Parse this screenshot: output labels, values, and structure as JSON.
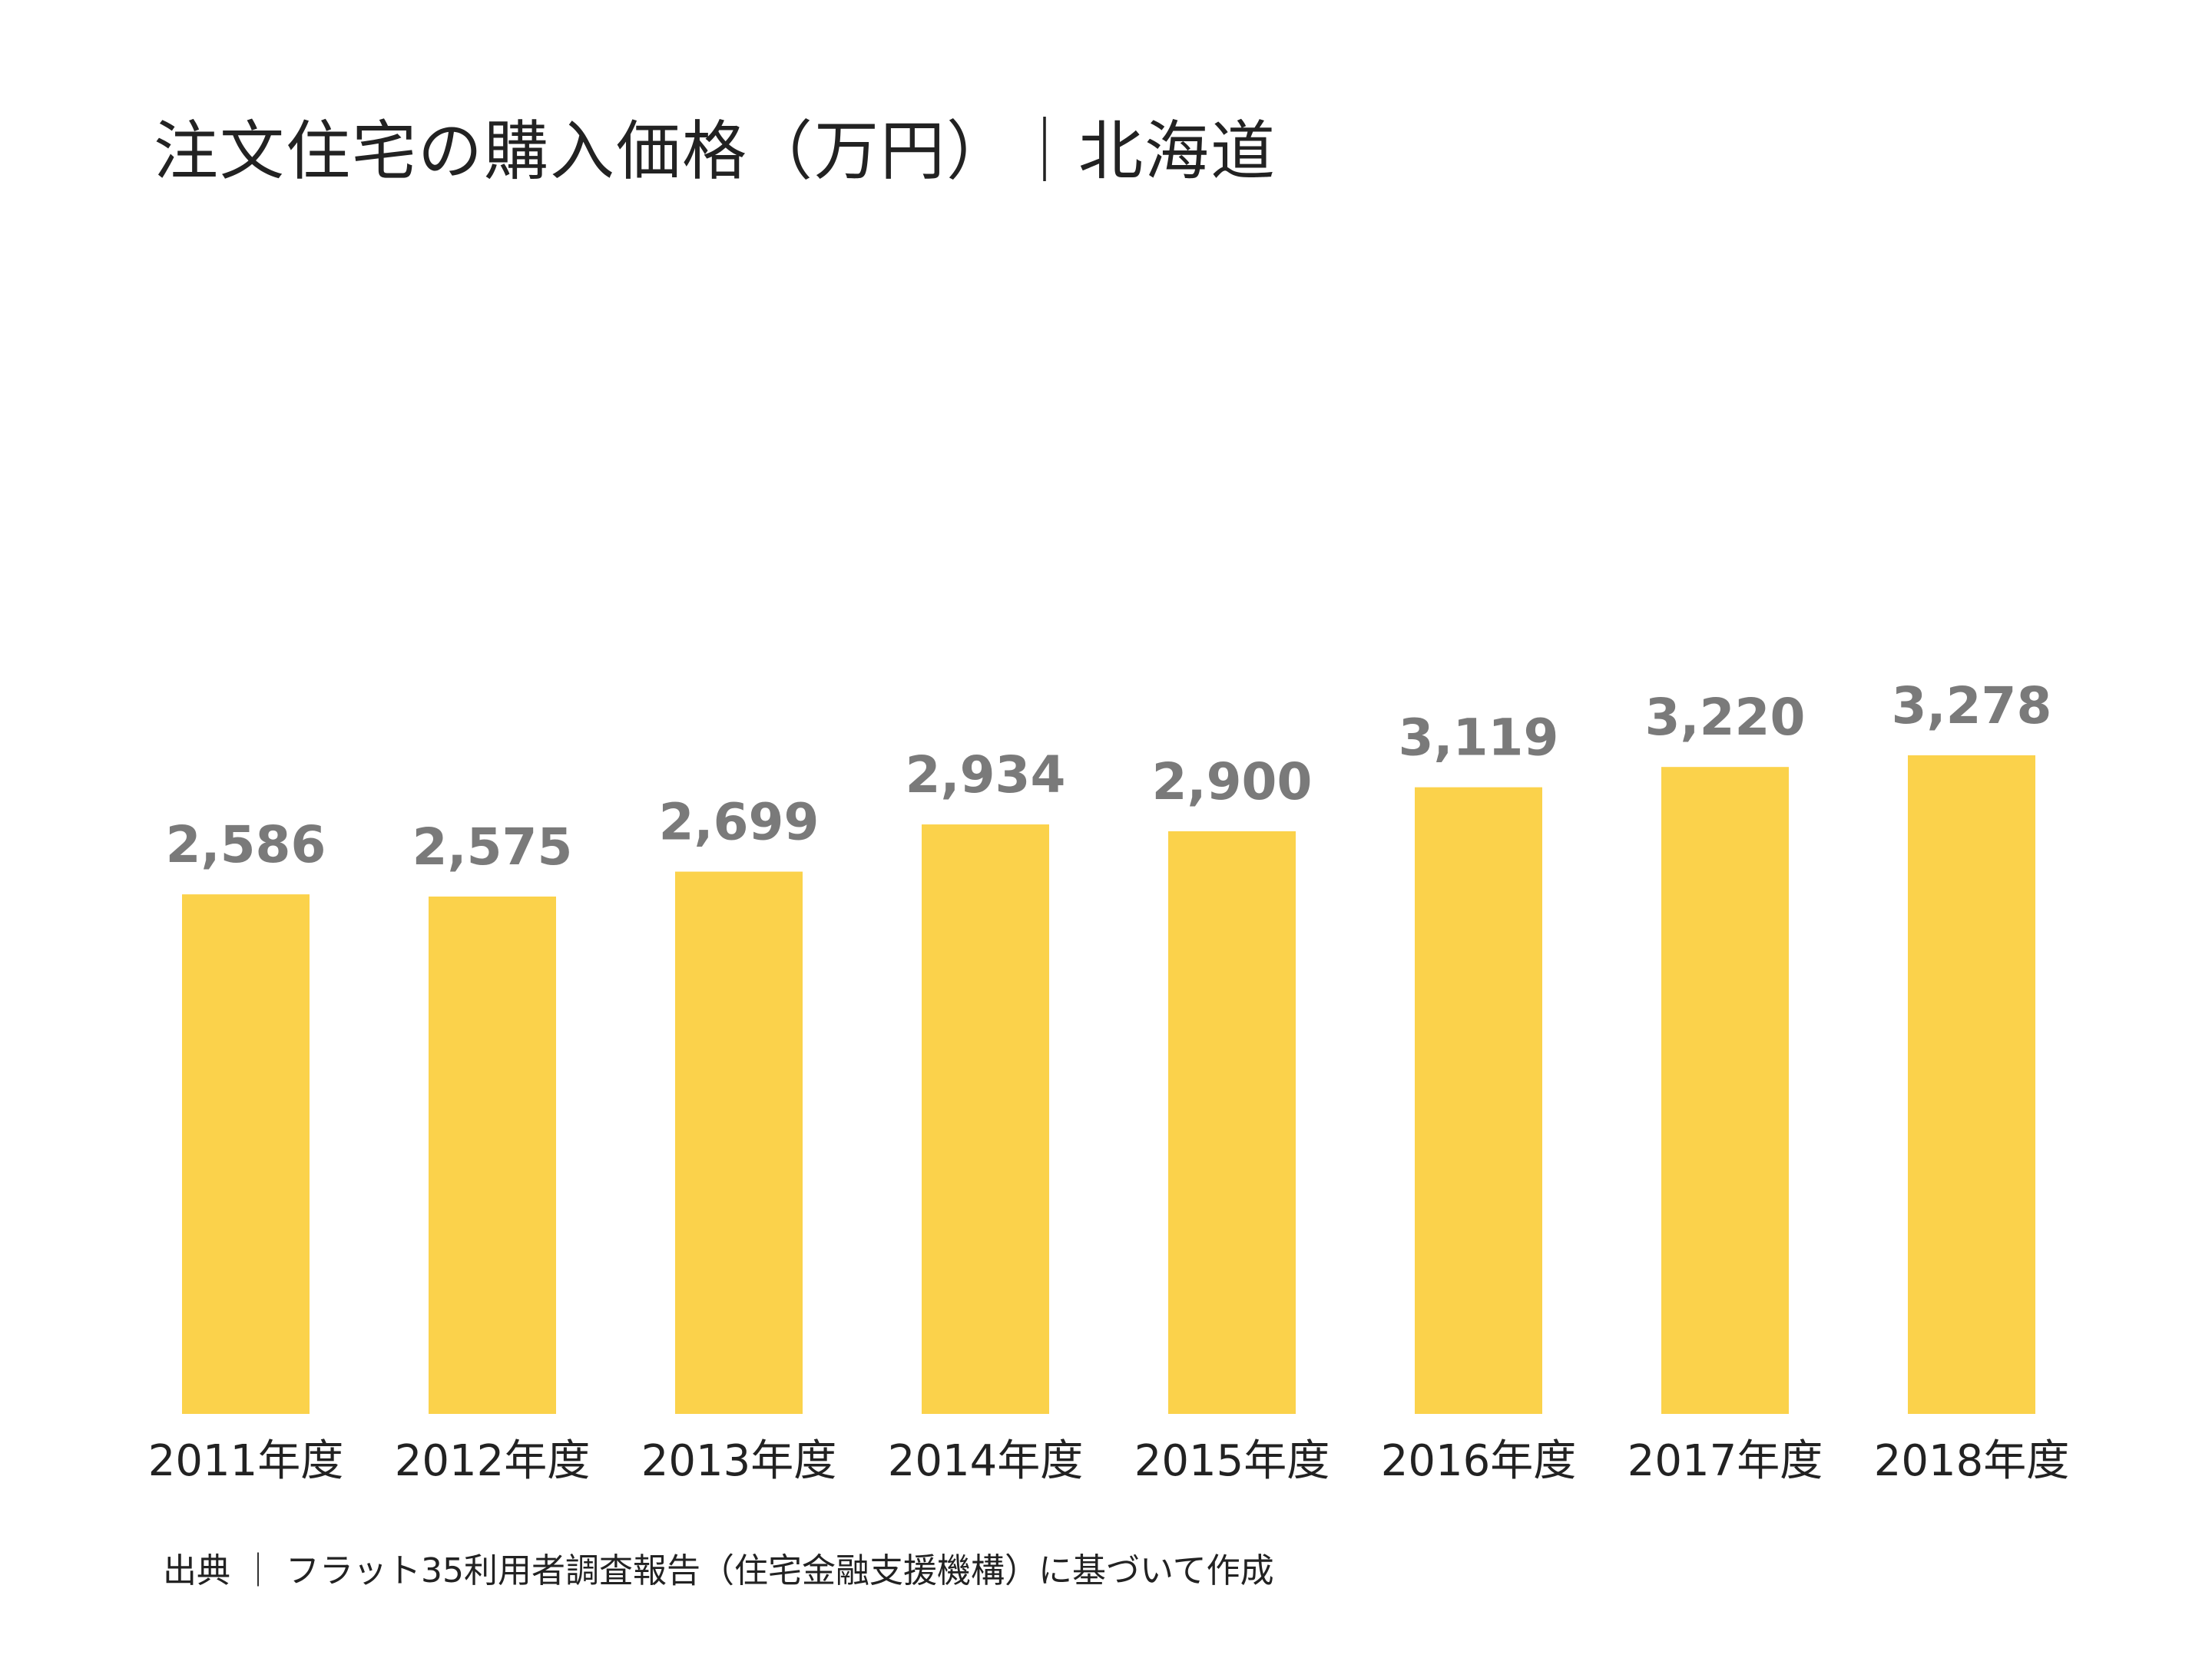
{
  "chart_data": {
    "type": "bar",
    "title": "注文住宅の購入価格（万円）｜北海道",
    "categories": [
      "2011年度",
      "2012年度",
      "2013年度",
      "2014年度",
      "2015年度",
      "2016年度",
      "2017年度",
      "2018年度"
    ],
    "values": [
      2586,
      2575,
      2699,
      2934,
      2900,
      3119,
      3220,
      3278
    ],
    "value_labels": [
      "2,586",
      "2,575",
      "2,699",
      "2,934",
      "2,900",
      "3,119",
      "3,220",
      "3,278"
    ],
    "xlabel": "",
    "ylabel": "",
    "ylim": [
      0,
      3278
    ],
    "grid": false,
    "legend": "none",
    "bar_color": "#fbd24b",
    "value_label_color": "#7a7a7a"
  },
  "source": "出典 ｜ フラット35利用者調査報告（住宅金融支援機構）に基づいて作成"
}
